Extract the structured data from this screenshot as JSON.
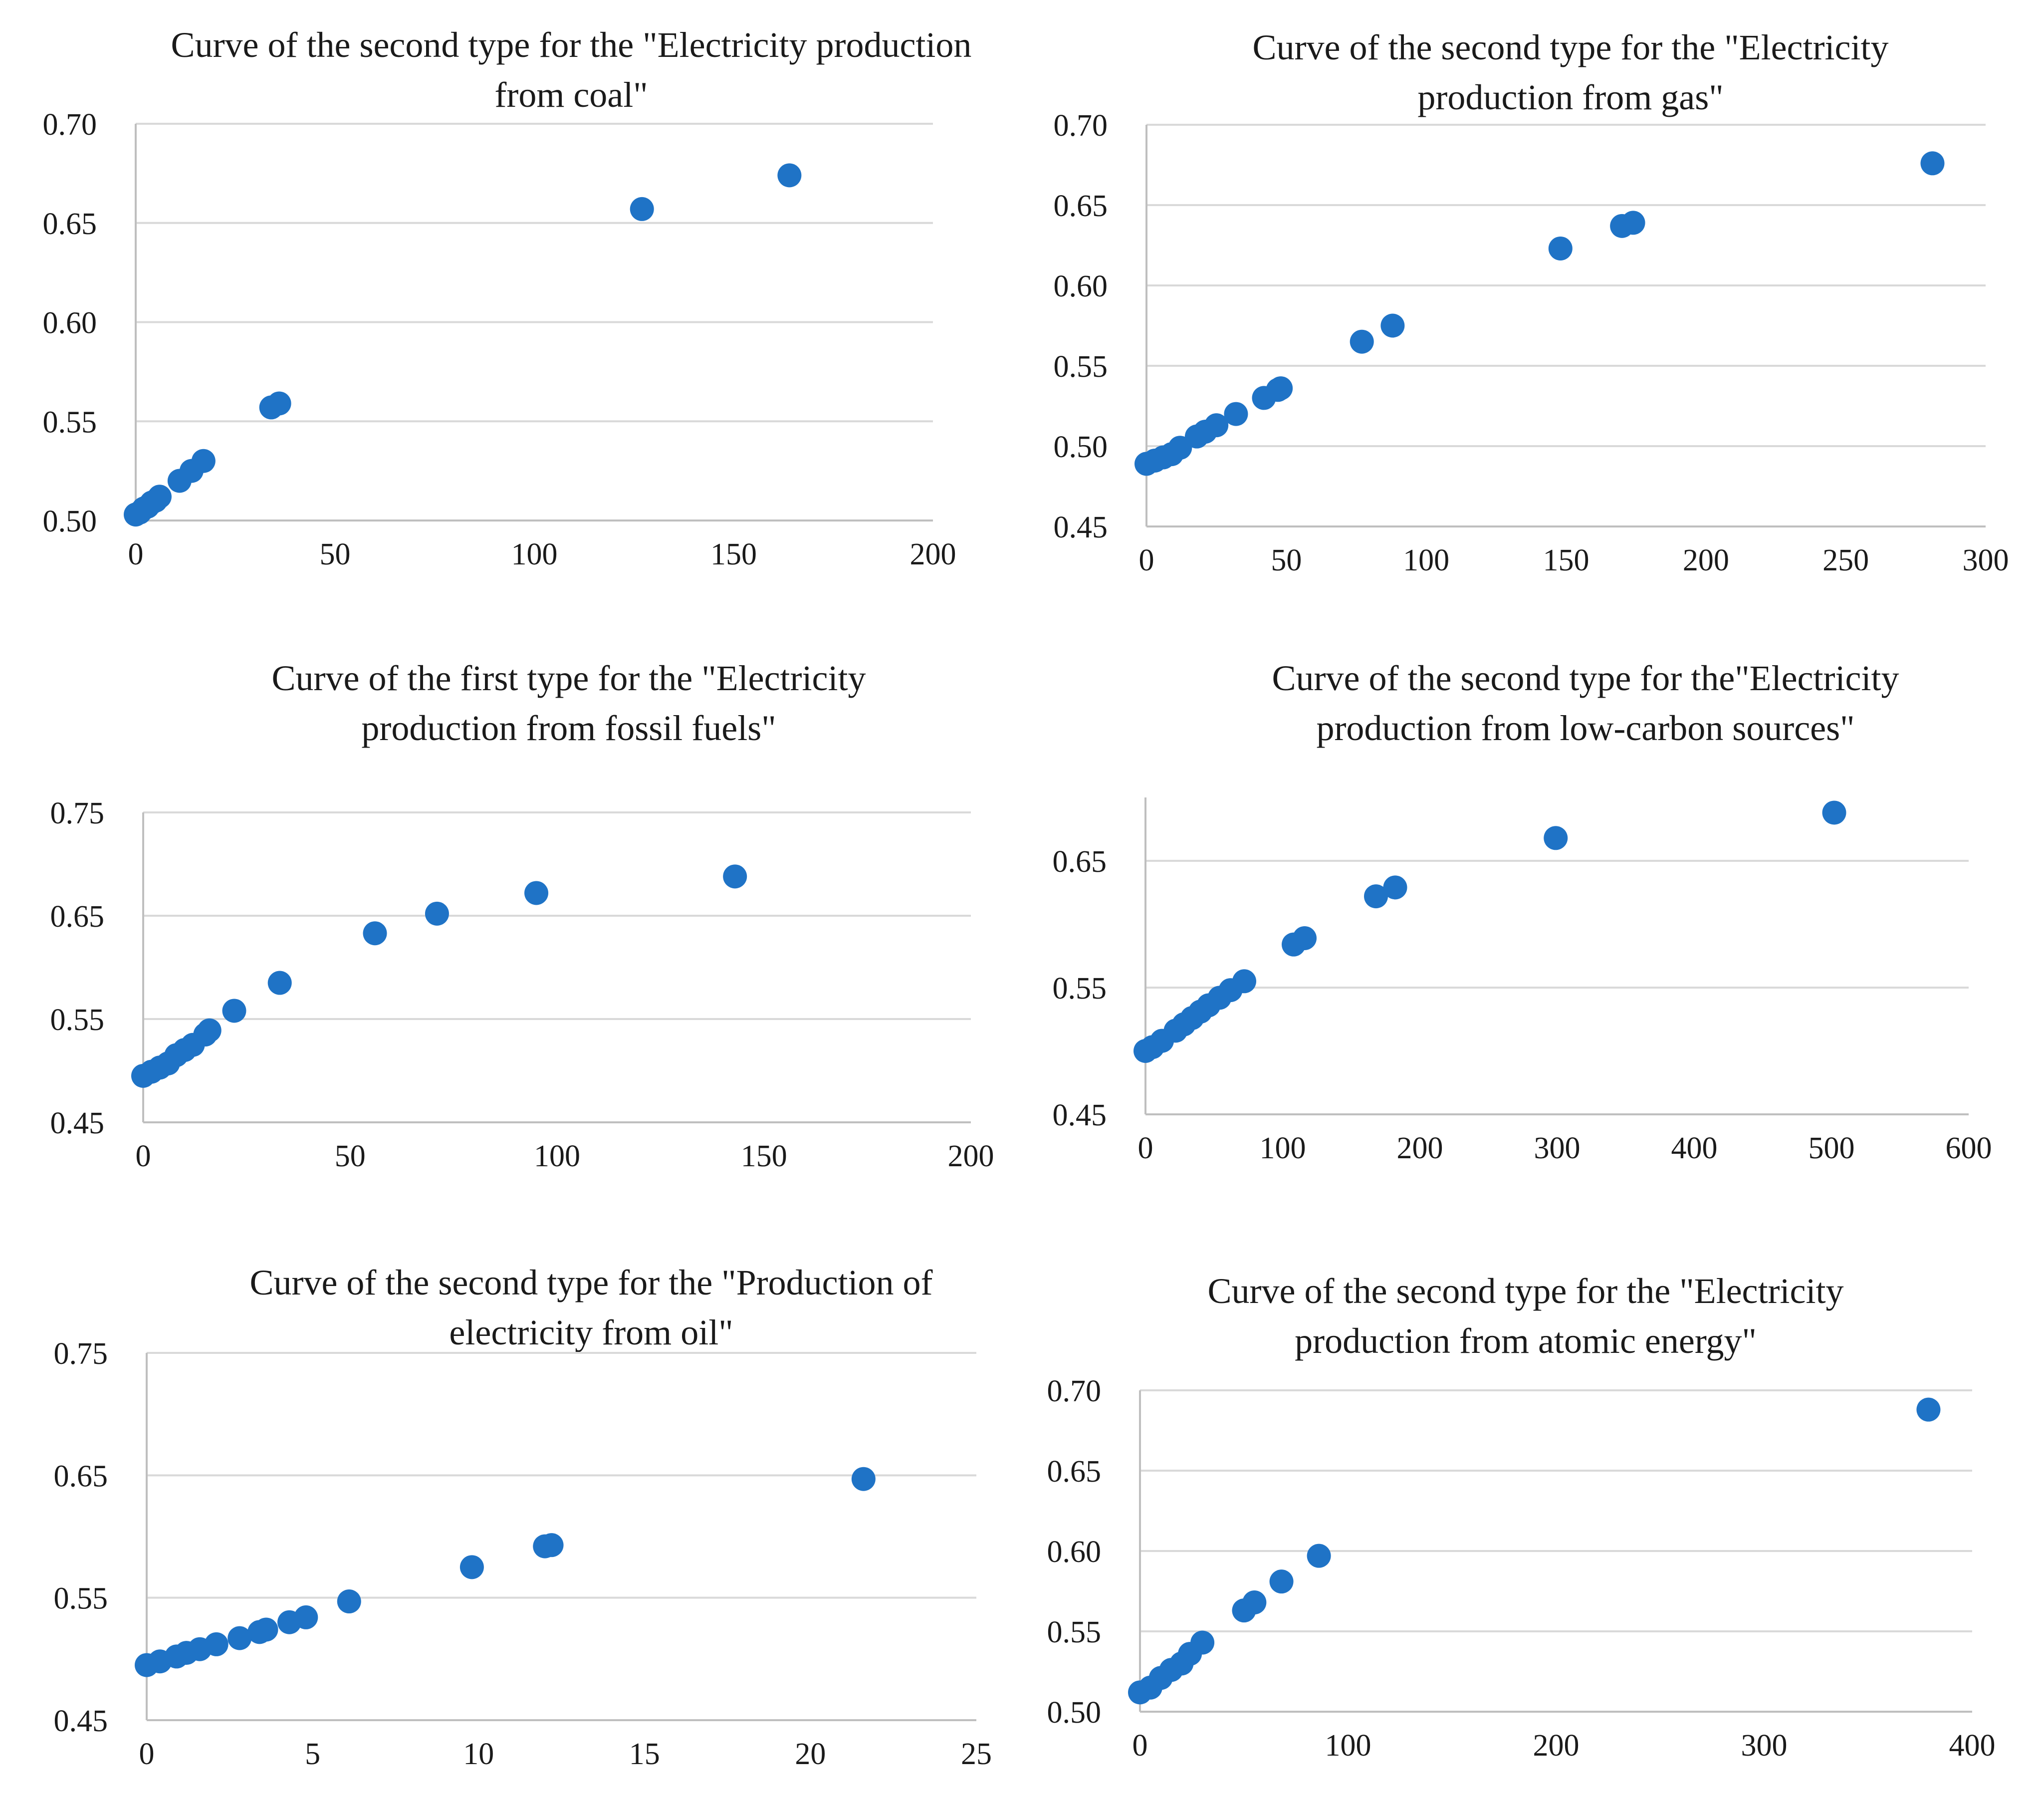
{
  "colors": {
    "marker": "#1f73c6",
    "grid": "#d9d9d9",
    "text": "#1a1a1a"
  },
  "chart_data": [
    {
      "type": "scatter",
      "title": "Curve of the second type for the \"Electricity production from coal\"",
      "xlabel": "",
      "ylabel": "",
      "xlim": [
        0,
        200
      ],
      "ylim": [
        0.5,
        0.7
      ],
      "xticks": [
        "0",
        "50",
        "100",
        "150",
        "200"
      ],
      "yticks": [
        "0.50",
        "0.55",
        "0.60",
        "0.65",
        "0.70"
      ],
      "grid": true,
      "legend": "none",
      "x": [
        0,
        1,
        2,
        3,
        4,
        5,
        6,
        11,
        14,
        17,
        34,
        36,
        127,
        164
      ],
      "y": [
        0.503,
        0.504,
        0.506,
        0.507,
        0.509,
        0.51,
        0.512,
        0.52,
        0.525,
        0.53,
        0.557,
        0.559,
        0.657,
        0.674
      ]
    },
    {
      "type": "scatter",
      "title": "Curve of the second type for the \"Electricity production from gas\"",
      "xlabel": "",
      "ylabel": "",
      "xlim": [
        0,
        300
      ],
      "ylim": [
        0.45,
        0.7
      ],
      "xticks": [
        "0",
        "50",
        "100",
        "150",
        "200",
        "250",
        "300"
      ],
      "yticks": [
        "0.45",
        "0.50",
        "0.55",
        "0.60",
        "0.65",
        "0.70"
      ],
      "grid": true,
      "legend": "none",
      "x": [
        0,
        3,
        6,
        9,
        12,
        18,
        21,
        25,
        32,
        42,
        47,
        48,
        77,
        88,
        148,
        170,
        174,
        281
      ],
      "y": [
        0.489,
        0.491,
        0.493,
        0.495,
        0.499,
        0.506,
        0.509,
        0.513,
        0.52,
        0.53,
        0.535,
        0.536,
        0.565,
        0.575,
        0.623,
        0.637,
        0.639,
        0.676
      ]
    },
    {
      "type": "scatter",
      "title": "Curve of the first type for the \"Electricity production from fossil fuels\"",
      "xlabel": "",
      "ylabel": "",
      "xlim": [
        0,
        200
      ],
      "ylim": [
        0.45,
        0.75
      ],
      "xticks": [
        "0",
        "50",
        "100",
        "150",
        "200"
      ],
      "yticks": [
        "0.45",
        "0.55",
        "0.65",
        "0.75"
      ],
      "grid": true,
      "legend": "none",
      "x": [
        0,
        2,
        4,
        6,
        8,
        10,
        12,
        15,
        16,
        22,
        33,
        56,
        71,
        95,
        143
      ],
      "y": [
        0.495,
        0.499,
        0.503,
        0.507,
        0.515,
        0.52,
        0.525,
        0.535,
        0.539,
        0.558,
        0.585,
        0.633,
        0.652,
        0.672,
        0.688
      ]
    },
    {
      "type": "scatter",
      "title": "Curve of the second type for the\"Electricity production from low-carbon sources\"",
      "xlabel": "",
      "ylabel": "",
      "xlim": [
        0,
        600
      ],
      "ylim": [
        0.45,
        0.7
      ],
      "xticks": [
        "0",
        "100",
        "200",
        "300",
        "400",
        "500",
        "600"
      ],
      "yticks": [
        "0.45",
        "0.55",
        "0.65"
      ],
      "grid": true,
      "legend": "none",
      "x": [
        0,
        5,
        12,
        22,
        28,
        34,
        40,
        46,
        54,
        62,
        72,
        108,
        116,
        168,
        182,
        299,
        502
      ],
      "y": [
        0.5,
        0.503,
        0.508,
        0.516,
        0.521,
        0.526,
        0.531,
        0.536,
        0.542,
        0.548,
        0.555,
        0.584,
        0.589,
        0.622,
        0.629,
        0.668,
        0.688
      ]
    },
    {
      "type": "scatter",
      "title": "Curve of the second type for the \"Production of electricity from oil\"",
      "xlabel": "",
      "ylabel": "",
      "xlim": [
        0,
        25
      ],
      "ylim": [
        0.45,
        0.75
      ],
      "xticks": [
        "0",
        "5",
        "10",
        "15",
        "20",
        "25"
      ],
      "yticks": [
        "0.45",
        "0.55",
        "0.65",
        "0.75"
      ],
      "grid": true,
      "legend": "none",
      "x": [
        0,
        0.4,
        0.9,
        1.2,
        1.6,
        2.1,
        2.8,
        3.4,
        3.6,
        4.3,
        4.8,
        6.1,
        9.8,
        12.0,
        12.2,
        21.6
      ],
      "y": [
        0.495,
        0.498,
        0.502,
        0.505,
        0.508,
        0.512,
        0.517,
        0.522,
        0.524,
        0.53,
        0.534,
        0.547,
        0.575,
        0.592,
        0.593,
        0.647
      ]
    },
    {
      "type": "scatter",
      "title": "Curve of the second type for the \"Electricity production from atomic energy\"",
      "xlabel": "",
      "ylabel": "",
      "xlim": [
        0,
        400
      ],
      "ylim": [
        0.5,
        0.7
      ],
      "xticks": [
        "0",
        "100",
        "200",
        "300",
        "400"
      ],
      "yticks": [
        "0.50",
        "0.55",
        "0.60",
        "0.65",
        "0.70"
      ],
      "grid": true,
      "legend": "none",
      "x": [
        0,
        5,
        10,
        15,
        20,
        24,
        30,
        50,
        55,
        68,
        86,
        379
      ],
      "y": [
        0.512,
        0.515,
        0.521,
        0.526,
        0.53,
        0.536,
        0.543,
        0.563,
        0.568,
        0.581,
        0.597,
        0.688
      ]
    }
  ]
}
